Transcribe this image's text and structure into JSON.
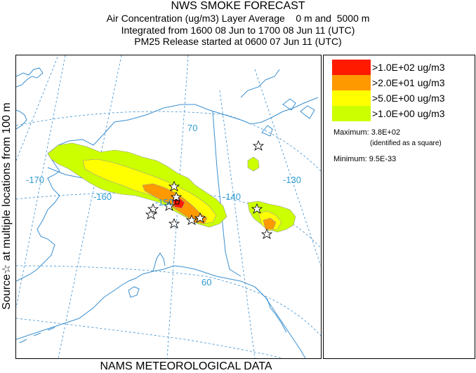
{
  "title_lines": [
    "NWS SMOKE FORECAST",
    "Air Concentration (ug/m3) Layer Average    0 m and  5000 m",
    "Integrated from 1600 08 Jun to 1700 08 Jun 11 (UTC)",
    "PM25 Release started at 0600 07 Jun 11 (UTC)"
  ],
  "side_label": "Source☆   at multiple locations   from   100 m",
  "bottom_label": "NAMS METEOROLOGICAL DATA",
  "map": {
    "grid_labels": [
      "70",
      "60",
      "-170",
      "-160",
      "-150",
      "-140",
      "-130"
    ],
    "colors": {
      "coast": "#3a8fd0",
      "grid": "#3a8fd0",
      "level_4": "#ff1a00",
      "level_3": "#ff9900",
      "level_2": "#ffff00",
      "level_1": "#ccff00"
    },
    "source_markers": "star",
    "max_marker": "square"
  },
  "legend": {
    "levels": [
      {
        "label": ">1.0E+02 ug/m3",
        "color": "#ff1a00"
      },
      {
        "label": ">2.0E+01 ug/m3",
        "color": "#ff9900"
      },
      {
        "label": ">5.0E+00 ug/m3",
        "color": "#ffff00"
      },
      {
        "label": ">1.0E+00 ug/m3",
        "color": "#ccff00"
      }
    ],
    "maximum_label": "Maximum: 3.8E+02",
    "maximum_note": "(identified as a square)",
    "minimum_label": "Minimum: 9.5E-33"
  }
}
